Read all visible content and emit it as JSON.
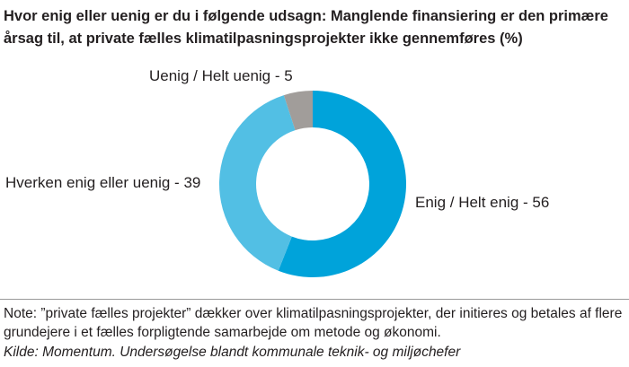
{
  "chart_data": {
    "type": "pie",
    "variant": "donut",
    "title": "Hvor enig eller uenig er du i følgende udsagn: Manglende finansiering er den primære årsag til, at private fælles klimatilpasningsprojekter ikke gennemføres (%)",
    "slices": [
      {
        "label": "Enig / Helt enig - 56",
        "name": "Enig / Helt enig",
        "value": 56,
        "color": "#00a3da"
      },
      {
        "label": "Hverken enig eller uenig - 39",
        "name": "Hverken enig eller uenig",
        "value": 39,
        "color": "#52bfe4"
      },
      {
        "label": "Uenig / Helt uenig - 5",
        "name": "Uenig / Helt uenig",
        "value": 5,
        "color": "#a19d9a"
      }
    ],
    "note": "Note: ”private fælles projekter” dækker over klimatilpasningsprojekter, der initieres og betales af flere grundejere i et fælles forpligtende samarbejde om metode og økonomi.",
    "source": "Kilde: Momentum. Undersøgelse blandt kommunale teknik- og miljøchefer"
  }
}
